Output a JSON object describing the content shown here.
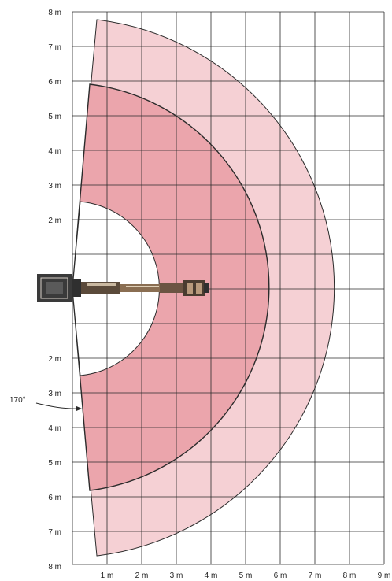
{
  "diagram": {
    "y_labels_top": [
      "8 m",
      "7 m",
      "6 m",
      "5 m",
      "4 m",
      "3 m",
      "2 m"
    ],
    "y_labels_bottom": [
      "2 m",
      "3 m",
      "4 m",
      "5 m",
      "6 m",
      "7 m",
      "8 m"
    ],
    "x_labels": [
      "1 m",
      "2 m",
      "3 m",
      "4 m",
      "5 m",
      "6 m",
      "7 m",
      "8 m",
      "9 m"
    ],
    "angle_label": "170°",
    "colors": {
      "outer_zone": "#f5d0d4",
      "middle_zone": "#eba5ac",
      "inner_zone": "#ffffff",
      "grid": "#2b2b2b",
      "boom": "#7a5a40",
      "base": "#3a3a3a"
    }
  }
}
